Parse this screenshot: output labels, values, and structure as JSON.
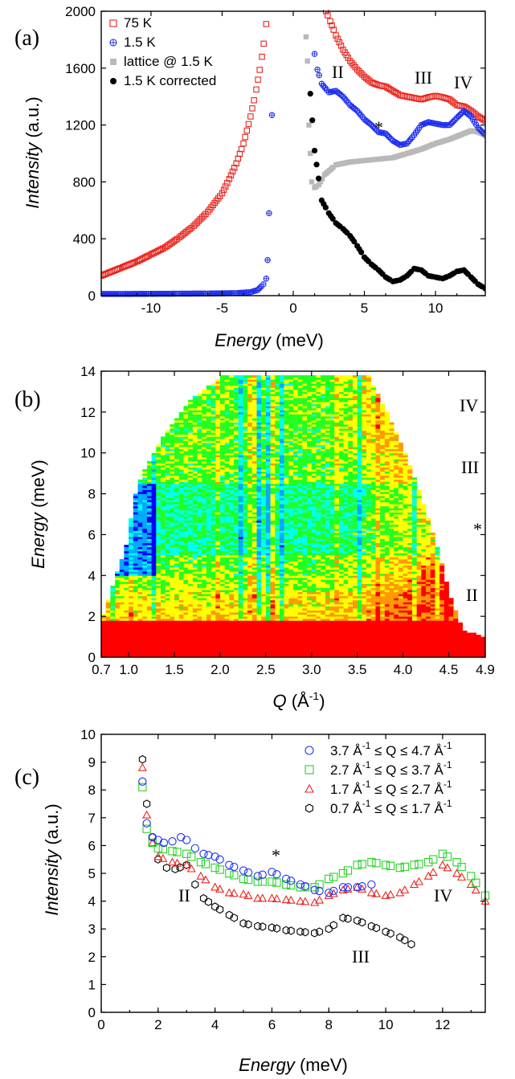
{
  "panels": {
    "a": {
      "label": "(a)",
      "xlabel_italic": "Energy",
      "xlabel_unit": " (meV)",
      "ylabel_italic": "Intensity",
      "ylabel_unit": " (a.u.)",
      "annotations": [
        "II",
        "III",
        "IV",
        "*"
      ]
    },
    "b": {
      "label": "(b)",
      "xlabel_italic": "Q",
      "xlabel_unit_a": " (Å",
      "xlabel_unit_sup": "-1",
      "xlabel_unit_b": ")",
      "ylabel_italic": "Energy",
      "ylabel_unit": " (meV)",
      "annotations": [
        "IV",
        "III",
        "*",
        "II"
      ]
    },
    "c": {
      "label": "(c)",
      "xlabel_italic": "Energy",
      "xlabel_unit": " (meV)",
      "ylabel_italic": "Intensity",
      "ylabel_unit": " (a.u.)",
      "annotations": [
        "II",
        "III",
        "IV",
        "*"
      ]
    }
  },
  "colors": {
    "red": "#e8241e",
    "blue": "#1f2ff0",
    "gray": "#b9b9b9",
    "black": "#000000",
    "green": "#28d228"
  },
  "chart_data": [
    {
      "type": "scatter",
      "xlim": [
        -13.5,
        13.5
      ],
      "ylim": [
        0,
        2000
      ],
      "xticks": [
        -10,
        -5,
        0,
        5,
        10
      ],
      "yticks": [
        0,
        400,
        800,
        1200,
        1600,
        2000
      ],
      "legend_position": "top-left",
      "series": [
        {
          "name": "75 K",
          "marker": "square-open",
          "color": "red",
          "x": [
            -13.5,
            -13,
            -12,
            -11,
            -10,
            -9,
            -8,
            -7,
            -6,
            -5,
            -4.5,
            -4,
            -3.5,
            -3,
            -2.6,
            -2.2,
            -1.9,
            2.3,
            2.6,
            3,
            3.5,
            4,
            4.5,
            5,
            5.5,
            6,
            6.5,
            7,
            7.5,
            8,
            8.5,
            9,
            9.5,
            10,
            10.5,
            11,
            11.5,
            12,
            12.5,
            13,
            13.5
          ],
          "y": [
            140,
            160,
            200,
            240,
            290,
            340,
            410,
            490,
            590,
            720,
            820,
            930,
            1070,
            1260,
            1450,
            1680,
            1910,
            2000,
            1930,
            1830,
            1730,
            1650,
            1590,
            1540,
            1500,
            1480,
            1470,
            1440,
            1410,
            1400,
            1390,
            1380,
            1395,
            1405,
            1395,
            1380,
            1340,
            1330,
            1300,
            1260,
            1230
          ]
        },
        {
          "name": "1.5 K",
          "marker": "circle-open-cross",
          "color": "blue",
          "x": [
            -13.5,
            -12,
            -10,
            -8,
            -6,
            -4,
            -3,
            -2.5,
            -2.1,
            -1.9,
            -1.8,
            -1.7,
            -1.5,
            1.5,
            1.7,
            2,
            2.5,
            3,
            3.5,
            4,
            4.5,
            5,
            5.5,
            6,
            6.5,
            7,
            7.5,
            8,
            8.5,
            9,
            9.5,
            10,
            10.5,
            11,
            11.5,
            12,
            12.5,
            13,
            13.5
          ],
          "y": [
            12,
            12,
            13,
            14,
            15,
            18,
            25,
            40,
            80,
            120,
            250,
            580,
            1270,
            1700,
            1590,
            1490,
            1430,
            1440,
            1400,
            1340,
            1300,
            1240,
            1200,
            1150,
            1140,
            1090,
            1060,
            1070,
            1130,
            1200,
            1220,
            1210,
            1200,
            1200,
            1250,
            1300,
            1260,
            1180,
            1130
          ]
        },
        {
          "name": "lattice @ 1.5 K",
          "marker": "square-filled",
          "color": "gray",
          "x": [
            0.9,
            1.0,
            1.1,
            1.2,
            1.3,
            1.5,
            1.8,
            2.2,
            3,
            4,
            5,
            6,
            7,
            8,
            9,
            10,
            11,
            12,
            12.5,
            13,
            13.5
          ],
          "y": [
            1820,
            1650,
            1200,
            1000,
            800,
            760,
            780,
            850,
            920,
            940,
            950,
            960,
            970,
            1000,
            1030,
            1070,
            1100,
            1140,
            1160,
            1150,
            1130
          ]
        },
        {
          "name": "1.5 K corrected",
          "marker": "circle-filled",
          "color": "black",
          "x": [
            1.2,
            1.5,
            2,
            2.5,
            3,
            3.5,
            4,
            4.5,
            5,
            5.5,
            6,
            6.5,
            7,
            7.5,
            8,
            8.5,
            9,
            9.5,
            10,
            10.5,
            11,
            11.5,
            12,
            12.5,
            13,
            13.5
          ],
          "y": [
            1420,
            1020,
            670,
            580,
            510,
            470,
            420,
            350,
            270,
            220,
            180,
            130,
            100,
            110,
            140,
            190,
            180,
            140,
            130,
            120,
            140,
            170,
            180,
            130,
            80,
            50
          ]
        }
      ]
    },
    {
      "type": "heatmap",
      "xlim": [
        0.7,
        4.9
      ],
      "ylim": [
        0,
        14
      ],
      "xticks": [
        0.7,
        1.0,
        1.5,
        2.0,
        2.5,
        3.0,
        3.5,
        4.0,
        4.5,
        4.9
      ],
      "xtick_labels": [
        "0.7",
        "1.0",
        "1.5",
        "2.0",
        "2.5",
        "3.0",
        "3.5",
        "4.0",
        "4.5",
        "4.9"
      ],
      "yticks": [
        0,
        2,
        4,
        6,
        8,
        10,
        12,
        14
      ],
      "colormap": [
        "#0000ff",
        "#00aaff",
        "#00ffee",
        "#22ff22",
        "#ffff00",
        "#ff9900",
        "#ff0000"
      ],
      "coverage_edges": {
        "left": [
          [
            0.7,
            0
          ],
          [
            0.7,
            1.8
          ],
          [
            0.9,
            4.5
          ],
          [
            1.0,
            5.9
          ],
          [
            1.05,
            7.6
          ],
          [
            1.15,
            9
          ],
          [
            1.4,
            11
          ],
          [
            1.7,
            12.7
          ],
          [
            2.05,
            13.85
          ]
        ],
        "right": [
          [
            4.9,
            0
          ],
          [
            4.9,
            1.0
          ],
          [
            4.65,
            1.3
          ],
          [
            4.6,
            2.0
          ],
          [
            4.52,
            3.0
          ],
          [
            4.4,
            5.0
          ],
          [
            4.3,
            6.5
          ],
          [
            4.15,
            8.5
          ],
          [
            3.98,
            10.5
          ],
          [
            3.8,
            12.2
          ],
          [
            3.62,
            13.85
          ]
        ]
      }
    },
    {
      "type": "scatter",
      "xlim": [
        0,
        13.5
      ],
      "ylim": [
        0,
        10
      ],
      "xticks": [
        0,
        2,
        4,
        6,
        8,
        10,
        12
      ],
      "yticks": [
        0,
        1,
        2,
        3,
        4,
        5,
        6,
        7,
        8,
        9,
        10
      ],
      "legend_position": "top-right",
      "series": [
        {
          "legend_text": [
            "3.7 Å",
            "-1",
            " ≤ Q ≤ 4.7 Å",
            "-1"
          ],
          "marker": "circle-open",
          "color": "blue",
          "x": [
            1.45,
            1.6,
            1.8,
            2.0,
            2.2,
            2.5,
            2.8,
            3.0,
            3.3,
            3.6,
            4.0,
            4.5,
            5.0,
            5.5,
            6.0,
            6.5,
            7.0,
            7.5,
            8.0,
            8.5,
            9.0,
            9.5
          ],
          "y": [
            8.3,
            6.8,
            6.3,
            6.2,
            6.1,
            6.15,
            6.3,
            6.2,
            5.9,
            5.7,
            5.6,
            5.3,
            5.1,
            4.9,
            5.05,
            4.8,
            4.6,
            4.4,
            4.3,
            4.5,
            4.5,
            4.6
          ]
        },
        {
          "legend_text": [
            "2.7 Å",
            "-1",
            " ≤ Q ≤ 3.7 Å",
            "-1"
          ],
          "marker": "square-open",
          "color": "green",
          "x": [
            1.45,
            1.6,
            1.8,
            2.0,
            2.5,
            3.0,
            3.5,
            4.0,
            4.5,
            5.0,
            5.5,
            6.0,
            6.5,
            7.0,
            7.5,
            8.0,
            8.5,
            9.0,
            9.5,
            10.0,
            10.5,
            11.0,
            11.5,
            12.0,
            12.5,
            13.0,
            13.5
          ],
          "y": [
            8.1,
            6.6,
            6.1,
            5.9,
            5.8,
            5.7,
            5.4,
            5.2,
            5.0,
            4.8,
            4.7,
            4.7,
            4.6,
            4.5,
            4.5,
            4.8,
            5.0,
            5.3,
            5.4,
            5.3,
            5.2,
            5.3,
            5.4,
            5.7,
            5.4,
            4.9,
            4.2
          ]
        },
        {
          "legend_text": [
            "1.7 Å",
            "-1",
            " ≤ Q ≤ 2.7 Å",
            "-1"
          ],
          "marker": "triangle-open",
          "color": "red",
          "x": [
            1.45,
            1.6,
            1.8,
            2.0,
            2.5,
            3.0,
            3.5,
            4.0,
            4.5,
            5.0,
            5.5,
            6.0,
            6.5,
            7.0,
            7.5,
            8.0,
            8.5,
            9.0,
            9.5,
            10.0,
            10.5,
            11.0,
            11.5,
            12.0,
            12.5,
            13.0,
            13.5
          ],
          "y": [
            8.8,
            7.1,
            6.1,
            5.6,
            5.4,
            5.3,
            4.9,
            4.5,
            4.3,
            4.25,
            4.1,
            4.1,
            4.05,
            4.0,
            3.95,
            4.2,
            4.4,
            4.5,
            4.3,
            4.2,
            4.3,
            4.6,
            4.9,
            5.3,
            5.0,
            4.6,
            4.0
          ]
        },
        {
          "legend_text": [
            "0.7 Å",
            "-1",
            " ≤ Q ≤ 1.7 Å",
            "-1"
          ],
          "marker": "hexagon-open",
          "color": "black",
          "x": [
            1.45,
            1.6,
            1.8,
            2.0,
            2.3,
            2.6,
            3.0,
            3.3,
            3.6,
            4.0,
            4.5,
            5.0,
            5.5,
            6.0,
            6.5,
            7.0,
            7.5,
            8.0,
            8.5,
            9.0,
            9.5,
            10.0,
            10.5,
            10.9
          ],
          "y": [
            9.1,
            7.5,
            6.3,
            5.5,
            5.2,
            5.15,
            5.3,
            4.6,
            4.1,
            3.8,
            3.5,
            3.2,
            3.1,
            3.05,
            2.95,
            2.9,
            2.85,
            3.0,
            3.4,
            3.3,
            3.1,
            2.9,
            2.7,
            2.45
          ]
        }
      ]
    }
  ]
}
